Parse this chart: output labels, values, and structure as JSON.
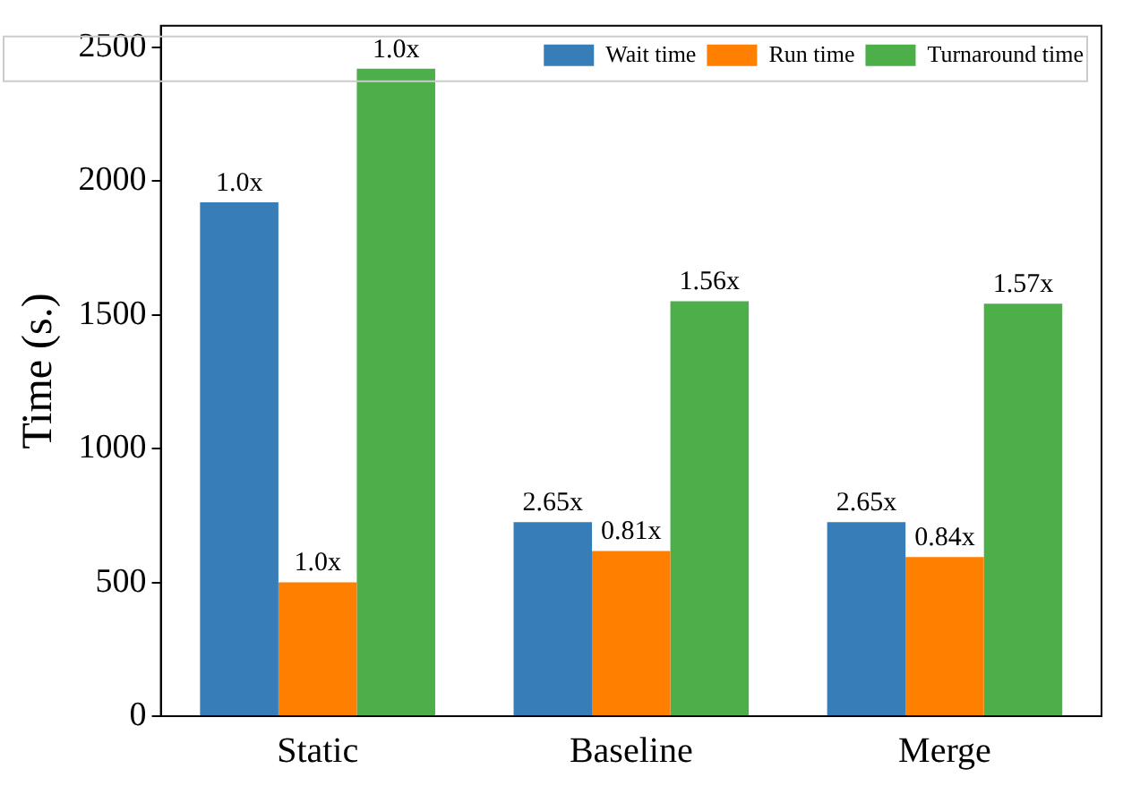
{
  "chart_data": {
    "type": "bar",
    "ylabel": "Time (s.)",
    "categories": [
      "Static",
      "Baseline",
      "Merge"
    ],
    "series": [
      {
        "name": "Wait time",
        "color": "#377eb8",
        "values": [
          1920,
          725,
          725
        ]
      },
      {
        "name": "Run time",
        "color": "#ff7f00",
        "values": [
          500,
          617,
          595
        ]
      },
      {
        "name": "Turnaround time",
        "color": "#4daf4a",
        "values": [
          2420,
          1551,
          1541
        ]
      }
    ],
    "annotations": [
      "1.0x",
      "1.0x",
      "1.0x",
      "2.65x",
      "0.81x",
      "1.56x",
      "2.65x",
      "0.84x",
      "1.57x"
    ],
    "ylim": [
      0,
      2580
    ],
    "yticks": [
      0,
      500,
      1000,
      1500,
      2000,
      2500
    ],
    "grid": false,
    "legend": "top right"
  }
}
